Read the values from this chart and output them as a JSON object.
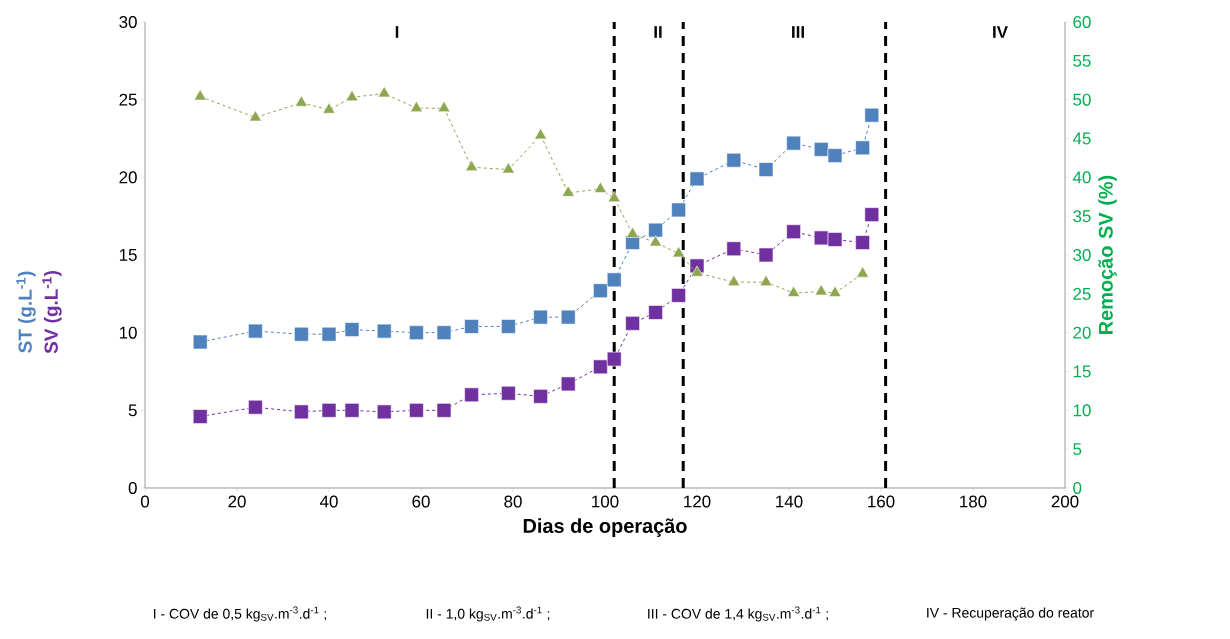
{
  "chart_data": {
    "type": "line",
    "xlabel": "Dias de operação",
    "y2label": "Remoção SV (%)",
    "x": [
      12,
      24,
      34,
      40,
      45,
      52,
      59,
      65,
      71,
      79,
      86,
      92,
      99,
      102,
      106,
      111,
      116,
      120,
      128,
      135,
      141,
      147,
      150,
      156,
      158
    ],
    "series": [
      {
        "name": "ST (g.L$^{-1}$)",
        "color": "#4f81bd",
        "marker": "square",
        "values": [
          9.4,
          10.1,
          9.9,
          9.9,
          10.2,
          10.1,
          10.0,
          10.0,
          10.4,
          10.4,
          11.0,
          11.0,
          12.7,
          13.4,
          15.8,
          16.6,
          17.9,
          19.9,
          21.1,
          20.5,
          22.2,
          21.8,
          21.4,
          21.9,
          24.0
        ]
      },
      {
        "name": "SV (g.L$^{-1}$)",
        "color": "#7030a0",
        "marker": "square",
        "values": [
          4.6,
          5.2,
          4.9,
          5.0,
          5.0,
          4.9,
          5.0,
          5.0,
          6.0,
          6.1,
          5.9,
          6.7,
          7.8,
          8.3,
          10.6,
          11.3,
          12.4,
          14.3,
          15.4,
          15.0,
          16.5,
          16.1,
          16.0,
          15.8,
          17.6
        ]
      },
      {
        "color": "#8ea64f",
        "marker": "triangle",
        "axis": "y2",
        "values": [
          50.4,
          47.7,
          49.6,
          48.7,
          50.3,
          50.8,
          48.9,
          48.9,
          41.3,
          41.0,
          45.4,
          38.0,
          38.5,
          37.3,
          32.7,
          31.6,
          30.2,
          27.7,
          26.5,
          26.5,
          25.1,
          25.3,
          25.1,
          27.6,
          null
        ]
      }
    ],
    "line_style": "dashed",
    "xlim": [
      0,
      200
    ],
    "xticks": [
      0,
      20,
      40,
      60,
      80,
      100,
      120,
      140,
      160,
      180,
      200
    ],
    "ylim": [
      0,
      30
    ],
    "yticks": [
      0,
      5,
      10,
      15,
      20,
      25,
      30
    ],
    "y2lim": [
      0,
      60
    ],
    "y2ticks": [
      0,
      5,
      10,
      15,
      20,
      25,
      30,
      35,
      40,
      45,
      50,
      55,
      60
    ],
    "ref_lines": [
      {
        "axis": "x",
        "value": 102,
        "color": "#000000",
        "line_style": "dashed"
      },
      {
        "axis": "x",
        "value": 117,
        "color": "#000000",
        "line_style": "dashed"
      },
      {
        "axis": "x",
        "value": 161,
        "color": "#000000",
        "line_style": "dashed"
      }
    ],
    "annotations": [
      "I",
      "II",
      "III",
      "IV",
      "I - COV de 0,5 kg$_{SV}$.m$^{-3}$.d$^{-1}$ ;",
      "II - 1,0 kg$_{SV}$.m$^{-3}$.d$^{-1}$ ;",
      "III - COV de 1,4 kg$_{SV}$.m$^{-3}$.d$^{-1}$ ;",
      "IV - Recuperação do reator"
    ],
    "grid": false
  }
}
